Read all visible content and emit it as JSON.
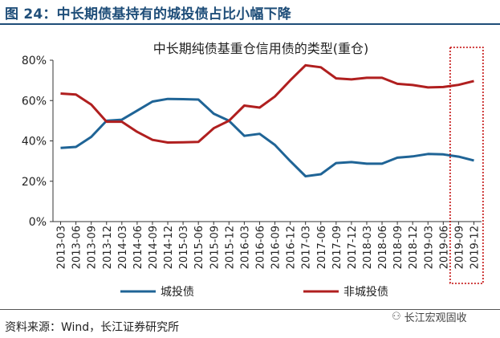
{
  "header": {
    "figure_title": "图 24：中长期债基持有的城投债占比小幅下降"
  },
  "footer": {
    "source": "资料来源：Wind，长江证券研究所",
    "watermark_text": "长江宏观固收",
    "watermark_icon": "wechat-icon"
  },
  "chart_data": {
    "type": "line",
    "title": "中长期纯债基重仓信用债的类型(重仓)",
    "xlabel": "",
    "ylabel": "",
    "ylim": [
      0,
      0.8
    ],
    "yticks": [
      "0%",
      "20%",
      "40%",
      "60%",
      "80%"
    ],
    "grid": false,
    "legend_position": "bottom",
    "categories": [
      "2013-03",
      "2013-06",
      "2013-09",
      "2013-12",
      "2014-03",
      "2014-06",
      "2014-09",
      "2014-12",
      "2015-03",
      "2015-06",
      "2015-09",
      "2015-12",
      "2016-03",
      "2016-06",
      "2016-09",
      "2016-12",
      "2017-03",
      "2017-06",
      "2017-09",
      "2017-12",
      "2018-03",
      "2018-06",
      "2018-09",
      "2018-12",
      "2019-03",
      "2019-06",
      "2019-09",
      "2019-12"
    ],
    "series": [
      {
        "name": "城投债",
        "color": "#1f6496",
        "values": [
          0.365,
          0.37,
          0.42,
          0.5,
          0.505,
          0.55,
          0.595,
          0.608,
          0.607,
          0.605,
          0.535,
          0.5,
          0.425,
          0.435,
          0.38,
          0.3,
          0.225,
          0.235,
          0.29,
          0.295,
          0.287,
          0.287,
          0.317,
          0.323,
          0.335,
          0.333,
          0.322,
          0.303
        ]
      },
      {
        "name": "非城投债",
        "color": "#b01f1f",
        "values": [
          0.635,
          0.63,
          0.58,
          0.495,
          0.495,
          0.445,
          0.405,
          0.392,
          0.393,
          0.395,
          0.463,
          0.5,
          0.575,
          0.565,
          0.62,
          0.7,
          0.775,
          0.765,
          0.71,
          0.705,
          0.713,
          0.713,
          0.683,
          0.677,
          0.665,
          0.667,
          0.678,
          0.697
        ]
      }
    ],
    "highlight": {
      "categories": [
        "2019-09",
        "2019-12"
      ],
      "style": "dotted-box",
      "color": "#c00000"
    }
  }
}
